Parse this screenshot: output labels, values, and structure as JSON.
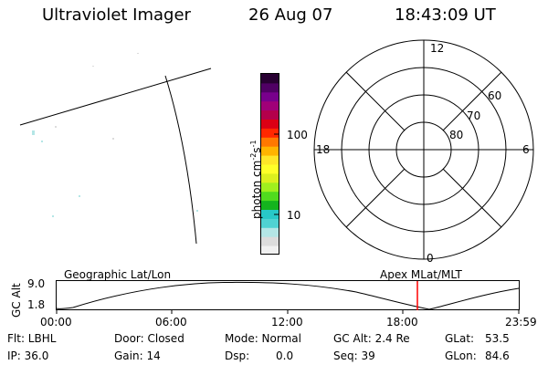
{
  "header": {
    "instrument": "Ultraviolet Imager",
    "date": "26 Aug 07",
    "time": "18:43:09 UT"
  },
  "colorbar": {
    "label": "photon cm",
    "sup1": "-2",
    "mid": "s",
    "sup2": "-1",
    "tick_high": "100",
    "tick_low": "10",
    "colors": [
      "#f0f0f0",
      "#dcdcdc",
      "#b4e6e6",
      "#50d2d2",
      "#28c8c8",
      "#14b41e",
      "#50dc1e",
      "#a0f01e",
      "#dcf01e",
      "#ffff28",
      "#ffe628",
      "#ffb400",
      "#ff7800",
      "#ff2800",
      "#dc0014",
      "#b4004b",
      "#a00078",
      "#78008c",
      "#500064",
      "#280032"
    ]
  },
  "polar": {
    "top": "12",
    "bottom": "0",
    "left": "18",
    "right": "6",
    "ring1": "60",
    "ring2": "70",
    "ring3": "80"
  },
  "altplot": {
    "ylabel": "GC Alt",
    "y_high": "9.0",
    "y_low": "1.8",
    "left_title": "Geographic Lat/Lon",
    "right_title": "Apex  MLat/MLT",
    "x_ticks": [
      "00:00",
      "06:00",
      "12:00",
      "18:00",
      "23:59"
    ],
    "marker_color": "#ff0000"
  },
  "info": {
    "row1": {
      "filter": "Flt: LBHL",
      "door": "Door: Closed",
      "mode": "Mode: Normal",
      "gcalt": "GC Alt: 2.4 Re",
      "glat_label": "GLat:",
      "glat_value": "53.5"
    },
    "row2": {
      "ip": "IP: 36.0",
      "gain": "Gain: 14",
      "dsp_label": "Dsp:",
      "dsp_value": "0.0",
      "seq": "Seq: 39",
      "glon_label": "GLon:",
      "glon_value": "84.6"
    }
  }
}
